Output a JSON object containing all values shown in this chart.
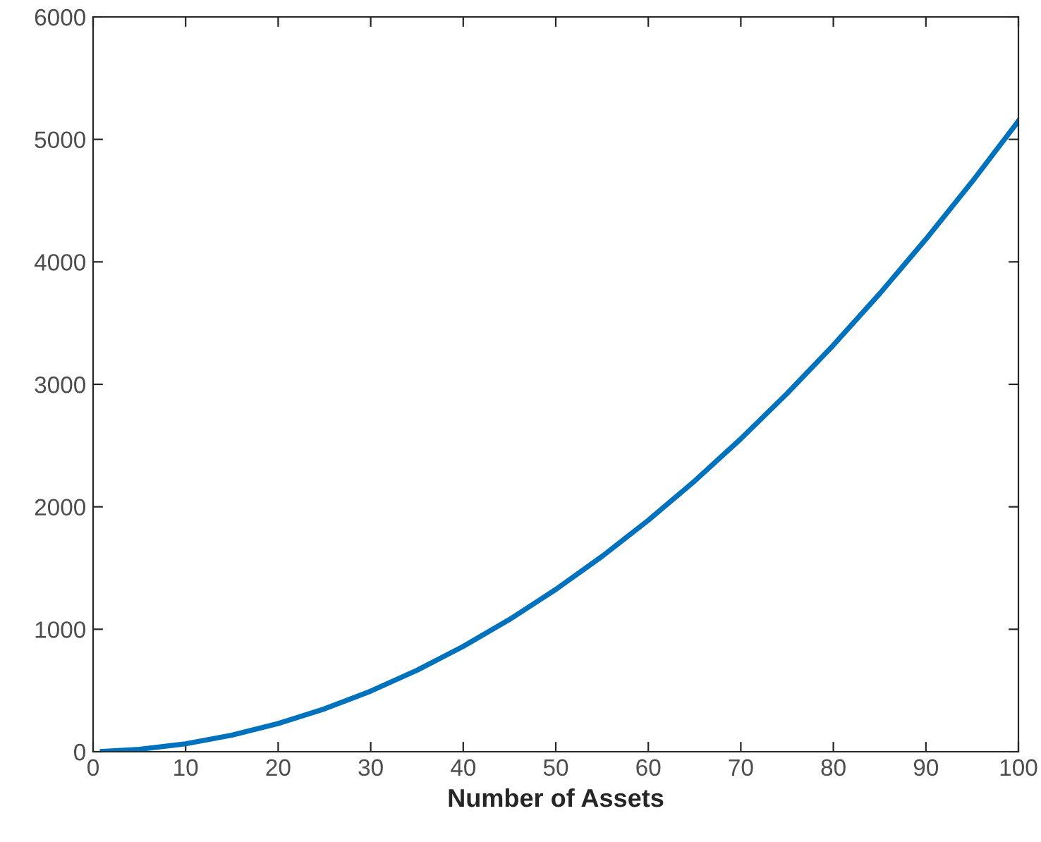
{
  "chart_data": {
    "type": "line",
    "xlabel": "Number of Assets",
    "x": [
      1,
      5,
      10,
      15,
      20,
      25,
      30,
      35,
      40,
      45,
      50,
      55,
      60,
      65,
      70,
      75,
      80,
      85,
      90,
      95,
      100
    ],
    "series": [
      {
        "color": "#0072bd",
        "values": [
          2,
          20,
          65,
          135,
          230,
          350,
          495,
          665,
          860,
          1080,
          1325,
          1595,
          1890,
          2210,
          2555,
          2925,
          3320,
          3740,
          4185,
          4655,
          5150
        ]
      }
    ],
    "xlim": [
      0,
      100
    ],
    "ylim": [
      0,
      6000
    ],
    "xticks": [
      0,
      10,
      20,
      30,
      40,
      50,
      60,
      70,
      80,
      90,
      100
    ],
    "yticks": [
      0,
      1000,
      2000,
      3000,
      4000,
      5000,
      6000
    ],
    "grid": false,
    "legend": false,
    "marker": "none",
    "line_style": "solid"
  }
}
